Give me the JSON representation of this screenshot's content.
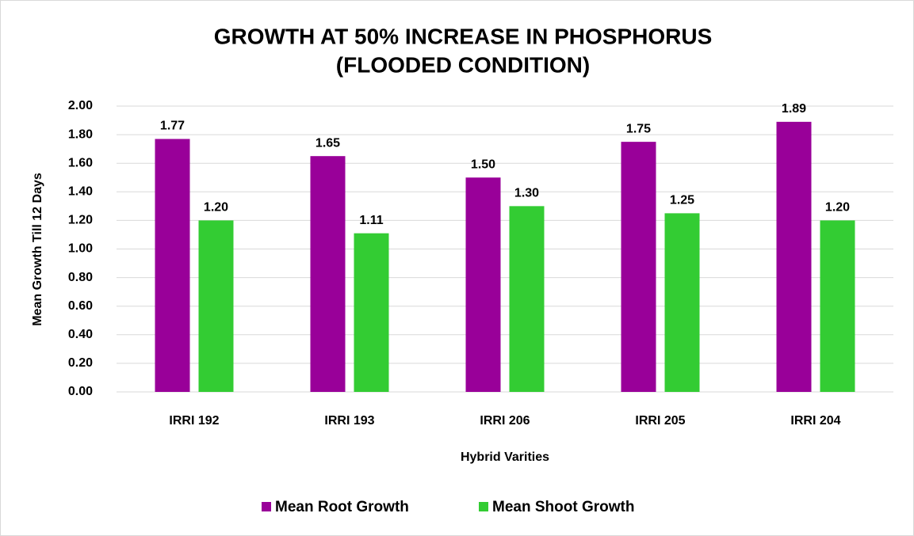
{
  "chart_data": {
    "type": "bar",
    "title": [
      "GROWTH AT 50% INCREASE IN PHOSPHORUS",
      "(FLOODED CONDITION)"
    ],
    "x_label": "Hybrid Varities",
    "y_label": "Mean Growth Till 12 Days",
    "categories": [
      "IRRI 192",
      "IRRI 193",
      "IRRI 206",
      "IRRI 205",
      "IRRI 204"
    ],
    "series": [
      {
        "name": "Mean Root Growth",
        "color": "#990099",
        "values": [
          1.77,
          1.65,
          1.5,
          1.75,
          1.89
        ],
        "value_labels": [
          "1.77",
          "1.65",
          "1.50",
          "1.75",
          "1.89"
        ]
      },
      {
        "name": "Mean Shoot Growth",
        "color": "#33cc33",
        "values": [
          1.2,
          1.11,
          1.3,
          1.25,
          1.2
        ],
        "value_labels": [
          "1.20",
          "1.11",
          "1.30",
          "1.25",
          "1.20"
        ]
      }
    ],
    "ylim": [
      0,
      2
    ],
    "yticks": [
      {
        "value": 0,
        "label": "0.00"
      },
      {
        "value": 0.2,
        "label": "0.20"
      },
      {
        "value": 0.4,
        "label": "0.40"
      },
      {
        "value": 0.6,
        "label": "0.60"
      },
      {
        "value": 0.8,
        "label": "0.80"
      },
      {
        "value": 1,
        "label": "1.00"
      },
      {
        "value": 1.2,
        "label": "1.20"
      },
      {
        "value": 1.4,
        "label": "1.40"
      },
      {
        "value": 1.6,
        "label": "1.60"
      },
      {
        "value": 1.8,
        "label": "1.80"
      },
      {
        "value": 2,
        "label": "2.00"
      }
    ],
    "grid": true,
    "legend": "bottom"
  }
}
